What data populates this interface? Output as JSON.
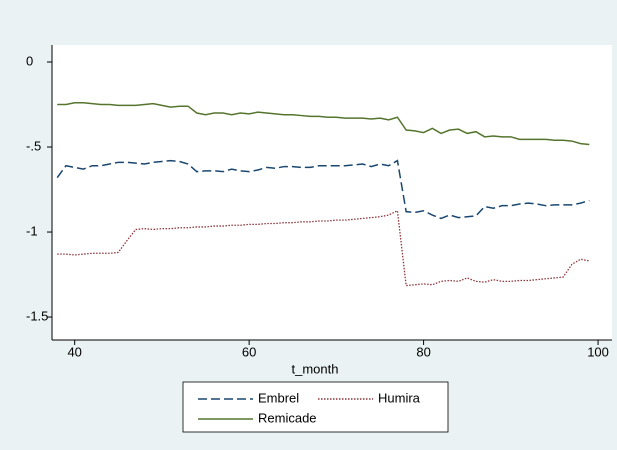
{
  "chart_data": {
    "type": "line",
    "x_label": "t_month",
    "x": [
      38,
      39,
      40,
      41,
      42,
      43,
      44,
      45,
      46,
      47,
      48,
      49,
      50,
      51,
      52,
      53,
      54,
      55,
      56,
      57,
      58,
      59,
      60,
      61,
      62,
      63,
      64,
      65,
      66,
      67,
      68,
      69,
      70,
      71,
      72,
      73,
      74,
      75,
      76,
      77,
      78,
      79,
      80,
      81,
      82,
      83,
      84,
      85,
      86,
      87,
      88,
      89,
      90,
      91,
      92,
      93,
      94,
      95,
      96,
      97,
      98,
      99
    ],
    "series": [
      {
        "name": "Embrel",
        "color": "#1a476f",
        "dash": "dash",
        "values": [
          -0.68,
          -0.61,
          -0.62,
          -0.63,
          -0.61,
          -0.61,
          -0.6,
          -0.59,
          -0.59,
          -0.595,
          -0.6,
          -0.59,
          -0.585,
          -0.58,
          -0.585,
          -0.6,
          -0.645,
          -0.64,
          -0.64,
          -0.645,
          -0.63,
          -0.64,
          -0.645,
          -0.635,
          -0.62,
          -0.625,
          -0.615,
          -0.615,
          -0.62,
          -0.62,
          -0.61,
          -0.61,
          -0.61,
          -0.61,
          -0.605,
          -0.6,
          -0.615,
          -0.6,
          -0.61,
          -0.58,
          -0.88,
          -0.885,
          -0.875,
          -0.9,
          -0.92,
          -0.9,
          -0.915,
          -0.91,
          -0.905,
          -0.85,
          -0.86,
          -0.845,
          -0.845,
          -0.835,
          -0.83,
          -0.835,
          -0.845,
          -0.84,
          -0.84,
          -0.84,
          -0.83,
          -0.815
        ]
      },
      {
        "name": "Humira",
        "color": "#90353b",
        "dash": "dot",
        "values": [
          -1.13,
          -1.13,
          -1.135,
          -1.13,
          -1.125,
          -1.125,
          -1.125,
          -1.12,
          -1.05,
          -0.985,
          -0.98,
          -0.985,
          -0.98,
          -0.98,
          -0.975,
          -0.975,
          -0.97,
          -0.97,
          -0.965,
          -0.965,
          -0.96,
          -0.96,
          -0.955,
          -0.955,
          -0.95,
          -0.95,
          -0.945,
          -0.945,
          -0.94,
          -0.94,
          -0.935,
          -0.935,
          -0.93,
          -0.93,
          -0.925,
          -0.92,
          -0.915,
          -0.91,
          -0.9,
          -0.875,
          -1.315,
          -1.31,
          -1.305,
          -1.31,
          -1.29,
          -1.285,
          -1.29,
          -1.27,
          -1.29,
          -1.295,
          -1.28,
          -1.29,
          -1.29,
          -1.285,
          -1.285,
          -1.28,
          -1.275,
          -1.27,
          -1.265,
          -1.19,
          -1.16,
          -1.17
        ]
      },
      {
        "name": "Remicade",
        "color": "#55752f",
        "dash": "solid",
        "values": [
          -0.25,
          -0.25,
          -0.24,
          -0.24,
          -0.245,
          -0.25,
          -0.25,
          -0.255,
          -0.255,
          -0.255,
          -0.25,
          -0.245,
          -0.255,
          -0.265,
          -0.26,
          -0.26,
          -0.3,
          -0.31,
          -0.3,
          -0.3,
          -0.31,
          -0.3,
          -0.305,
          -0.295,
          -0.3,
          -0.305,
          -0.31,
          -0.31,
          -0.315,
          -0.32,
          -0.32,
          -0.325,
          -0.325,
          -0.33,
          -0.33,
          -0.33,
          -0.335,
          -0.33,
          -0.34,
          -0.325,
          -0.4,
          -0.405,
          -0.415,
          -0.39,
          -0.42,
          -0.4,
          -0.395,
          -0.42,
          -0.41,
          -0.44,
          -0.435,
          -0.44,
          -0.44,
          -0.455,
          -0.455,
          -0.455,
          -0.455,
          -0.46,
          -0.46,
          -0.465,
          -0.48,
          -0.485
        ]
      }
    ],
    "xlim": [
      37.4,
      101.6
    ],
    "xticks": [
      40,
      60,
      80,
      100
    ],
    "ylim": [
      -1.635,
      0.1
    ],
    "yticks": [
      0,
      {
        "value": -0.5,
        "label": "-.5"
      },
      -1,
      {
        "value": -1.5,
        "label": "-1.5"
      }
    ],
    "grid": false,
    "legend": "bottom"
  }
}
